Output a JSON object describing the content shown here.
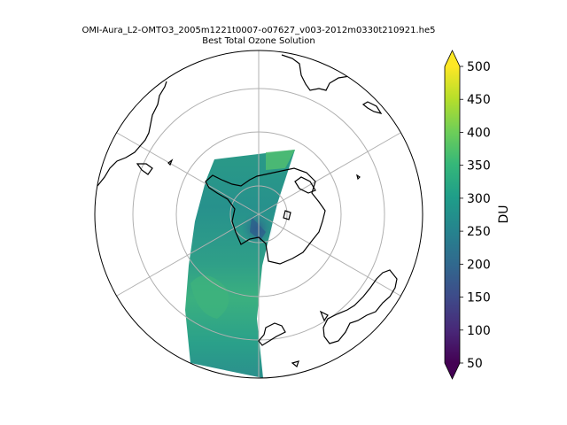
{
  "figure": {
    "title_line1": "OMI-Aura_L2-OMTO3_2005m1221t0007-o07627_v003-2012m0330t210921.he5",
    "title_line2": "Best Total Ozone Solution"
  },
  "colorbar": {
    "label": "DU",
    "ticks": [
      "50",
      "100",
      "150",
      "200",
      "250",
      "300",
      "350",
      "400",
      "450",
      "500"
    ],
    "range": [
      50,
      500
    ],
    "extend": "both",
    "colormap": "viridis",
    "colors": [
      "#440154",
      "#482878",
      "#3e4a89",
      "#31688e",
      "#26828e",
      "#1f9e89",
      "#35b779",
      "#6ece58",
      "#b5de2b",
      "#fde725"
    ]
  },
  "map": {
    "projection": "south polar stereographic",
    "coastline_color": "#000000",
    "gridline_color": "#b0b0b0",
    "swath_colors": [
      "#2a8f8a",
      "#2fa58a",
      "#3fb97a",
      "#2c7f8c",
      "#29a88a"
    ]
  }
}
